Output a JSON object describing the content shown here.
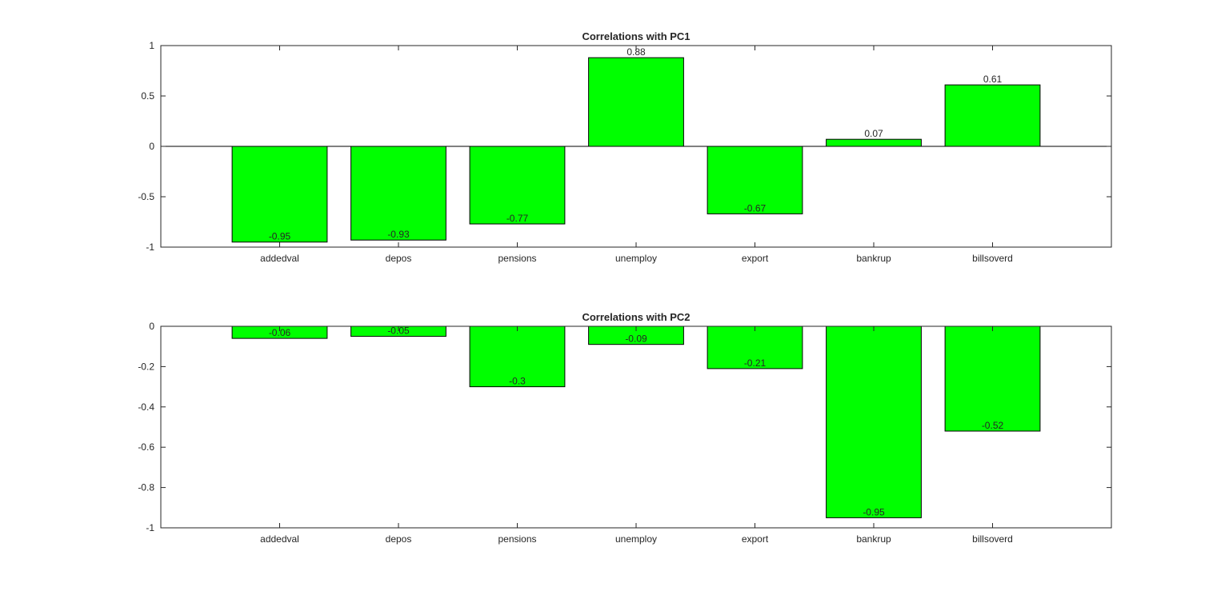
{
  "chart_data": [
    {
      "type": "bar",
      "title": "Correlations  with PC1",
      "categories": [
        "addedval",
        "depos",
        "pensions",
        "unemploy",
        "export",
        "bankrup",
        "billsoverd"
      ],
      "values": [
        -0.95,
        -0.93,
        -0.77,
        0.88,
        -0.67,
        0.07,
        0.61
      ],
      "data_labels": [
        "-0.95",
        "-0.93",
        "-0.77",
        "0.88",
        "-0.67",
        "0.07",
        "0.61"
      ],
      "ylim": [
        -1,
        1
      ],
      "yticks": [
        -1,
        -0.5,
        0,
        0.5,
        1
      ],
      "ytick_labels": [
        "-1",
        "-0.5",
        "0",
        "0.5",
        "1"
      ],
      "xlabel": "",
      "ylabel": "",
      "bar_color": "#00ff00",
      "grid": false
    },
    {
      "type": "bar",
      "title": "Correlations  with PC2",
      "categories": [
        "addedval",
        "depos",
        "pensions",
        "unemploy",
        "export",
        "bankrup",
        "billsoverd"
      ],
      "values": [
        -0.06,
        -0.05,
        -0.3,
        -0.09,
        -0.21,
        -0.95,
        -0.52
      ],
      "data_labels": [
        "-0.06",
        "-0.05",
        "-0.3",
        "-0.09",
        "-0.21",
        "-0.95",
        "-0.52"
      ],
      "ylim": [
        -1,
        0
      ],
      "yticks": [
        -1,
        -0.8,
        -0.6,
        -0.4,
        -0.2,
        0
      ],
      "ytick_labels": [
        "-1",
        "-0.8",
        "-0.6",
        "-0.4",
        "-0.2",
        "0"
      ],
      "xlabel": "",
      "ylabel": "",
      "bar_color": "#00ff00",
      "grid": false
    }
  ]
}
